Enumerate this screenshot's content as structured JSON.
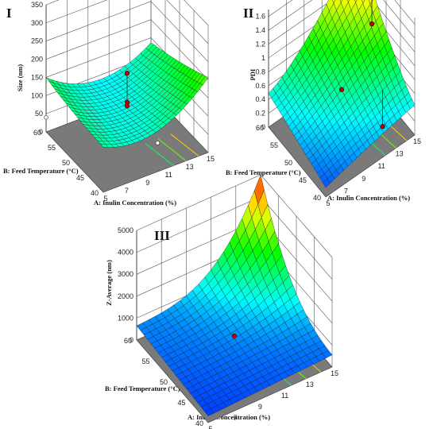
{
  "colors": {
    "grid": "#555555",
    "floor": "#7a7a7a",
    "mesh": "#1a1a1a",
    "point": "#c00000",
    "point_below": "#ffffff"
  },
  "chart_data": [
    {
      "panel": "I",
      "type": "surface",
      "x": {
        "label": "A: Inulin Concentration (%)",
        "ticks": [
          "5",
          "7",
          "9",
          "11",
          "13",
          "15"
        ],
        "range": [
          5,
          15
        ]
      },
      "y": {
        "label": "B: Feed Temperature (°C)",
        "ticks": [
          "40",
          "45",
          "50",
          "55",
          "60"
        ],
        "range": [
          40,
          60
        ]
      },
      "z": {
        "label": "Size (nm)",
        "ticks": [
          "0",
          "50",
          "100",
          "150",
          "200",
          "250",
          "300",
          "350"
        ],
        "range": [
          0,
          350
        ]
      },
      "colormap": [
        "#0000ff",
        "#00ffff",
        "#00ff00",
        "#ffff00",
        "#ff0000"
      ],
      "grid": true,
      "surface_samples": [
        {
          "A": 5,
          "B": 60,
          "Size": 130
        },
        {
          "A": 15,
          "B": 60,
          "Size": 110
        },
        {
          "A": 5,
          "B": 40,
          "Size": 105
        },
        {
          "A": 10,
          "B": 50,
          "Size": 75
        },
        {
          "A": 15,
          "B": 40,
          "Size": 250
        }
      ],
      "design_points": [
        {
          "A": 10,
          "B": 50,
          "Size": 190,
          "above": true
        },
        {
          "A": 10,
          "B": 50,
          "Size": 110,
          "above": true
        },
        {
          "A": 10,
          "B": 50,
          "Size": 100,
          "above": true
        },
        {
          "A": 5,
          "B": 60,
          "Size": 40,
          "above": false
        },
        {
          "A": 11,
          "B": 43,
          "Size": 45,
          "above": false
        }
      ]
    },
    {
      "panel": "II",
      "type": "surface",
      "x": {
        "label": "A: Inulin Concentration (%)",
        "ticks": [
          "5",
          "7",
          "9",
          "11",
          "13",
          "15"
        ],
        "range": [
          5,
          15
        ]
      },
      "y": {
        "label": "B: Feed Temperature (°C)",
        "ticks": [
          "40",
          "45",
          "50",
          "55",
          "60"
        ],
        "range": [
          40,
          60
        ]
      },
      "z": {
        "label": "PDI",
        "ticks": [
          "0",
          "0.2",
          "0.4",
          "0.6",
          "0.8",
          "1",
          "1.2",
          "1.4",
          "1.6"
        ],
        "range": [
          0,
          1.7
        ]
      },
      "colormap": [
        "#0000ff",
        "#00ffff",
        "#00ff00",
        "#ffff00",
        "#ff0000"
      ],
      "grid": true,
      "surface_samples": [
        {
          "A": 5,
          "B": 60,
          "PDI": 0.45
        },
        {
          "A": 15,
          "B": 60,
          "PDI": 1.7
        },
        {
          "A": 5,
          "B": 40,
          "PDI": 0.15
        },
        {
          "A": 10,
          "B": 50,
          "PDI": 0.55
        },
        {
          "A": 15,
          "B": 40,
          "PDI": 0.5
        }
      ],
      "design_points": [
        {
          "A": 10,
          "B": 50,
          "PDI": 0.6,
          "above": true
        },
        {
          "A": 15,
          "B": 55,
          "PDI": 0.85,
          "above": true
        },
        {
          "A": 13,
          "B": 45,
          "PDI": 0.05,
          "above": true
        },
        {
          "A": 7,
          "B": 52,
          "PDI": 0.1,
          "above": false
        }
      ]
    },
    {
      "panel": "III",
      "type": "surface",
      "x": {
        "label": "A: Inulin Concentration (%)",
        "ticks": [
          "5",
          "7",
          "9",
          "11",
          "13",
          "15"
        ],
        "range": [
          5,
          15
        ]
      },
      "y": {
        "label": "B: Feed Temperature (°C)",
        "ticks": [
          "40",
          "45",
          "50",
          "55",
          "60"
        ],
        "range": [
          40,
          60
        ]
      },
      "z": {
        "label": "Z-Average (nm)",
        "ticks": [
          "0",
          "1000",
          "2000",
          "3000",
          "4000",
          "5000"
        ],
        "range": [
          0,
          5000
        ]
      },
      "colormap": [
        "#0000ff",
        "#00ffff",
        "#00ff00",
        "#ffff00",
        "#ff0000"
      ],
      "grid": true,
      "surface_samples": [
        {
          "A": 5,
          "B": 60,
          "Z-Average": 600
        },
        {
          "A": 15,
          "B": 60,
          "Z-Average": 5000
        },
        {
          "A": 5,
          "B": 40,
          "Z-Average": 300
        },
        {
          "A": 10,
          "B": 50,
          "Z-Average": 450
        },
        {
          "A": 15,
          "B": 40,
          "Z-Average": 900
        }
      ],
      "design_points": [
        {
          "A": 10,
          "B": 50,
          "Z-Average": 800,
          "above": true
        },
        {
          "A": 11,
          "B": 48,
          "Z-Average": 100,
          "above": false
        }
      ]
    }
  ],
  "panel_labels": [
    "I",
    "II",
    "III"
  ]
}
